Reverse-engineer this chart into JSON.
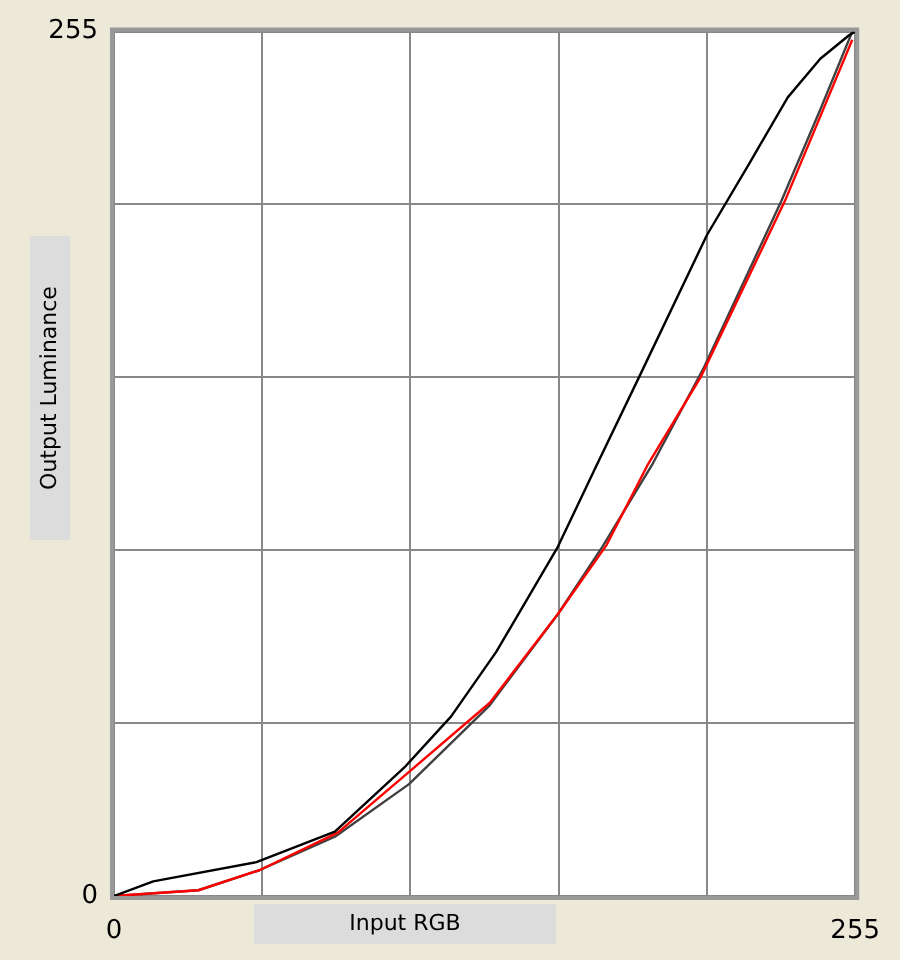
{
  "chart_data": {
    "type": "line",
    "xlabel": "Input RGB",
    "ylabel": "Output Luminance",
    "xlim": [
      0,
      255
    ],
    "ylim": [
      0,
      255
    ],
    "xticks": [
      0,
      {
        "value": 51,
        "label": null
      },
      {
        "value": 102,
        "label": null
      },
      {
        "value": 153,
        "label": null
      },
      {
        "value": 204,
        "label": null
      },
      255
    ],
    "yticks": [
      0,
      {
        "value": 51,
        "label": null
      },
      {
        "value": 102,
        "label": null
      },
      {
        "value": 153,
        "label": null
      },
      {
        "value": 204,
        "label": null
      },
      255
    ],
    "grid": true,
    "marker": "none",
    "line_style": "solid",
    "series": [
      {
        "color": "#000000",
        "x": [
          0,
          13.5,
          49,
          76,
          100,
          116,
          131.5,
          152.7,
          166,
          180.6,
          204,
          218.5,
          231.8,
          243,
          253,
          255
        ],
        "values": [
          0,
          4.3,
          10,
          19,
          38,
          53,
          72,
          103,
          127,
          153,
          195,
          216,
          235.6,
          247,
          254,
          255
        ]
      },
      {
        "color": "#ff0000",
        "x": [
          0,
          29,
          50,
          77,
          100.4,
          129.3,
          153,
          169.5,
          183.5,
          201.8,
          230.8,
          243,
          254
        ],
        "values": [
          0,
          1.7,
          7.6,
          18.7,
          35.8,
          57,
          83.5,
          103.6,
          127,
          153,
          205,
          230,
          252.6
        ]
      },
      {
        "color": "#404040",
        "x": [
          0,
          29,
          50,
          76,
          101.5,
          129,
          153,
          168,
          185,
          203,
          229.6,
          243,
          254
        ],
        "values": [
          0,
          1.7,
          7.6,
          17.5,
          33,
          56,
          83.5,
          103,
          127,
          156,
          205,
          232,
          255
        ]
      }
    ]
  }
}
